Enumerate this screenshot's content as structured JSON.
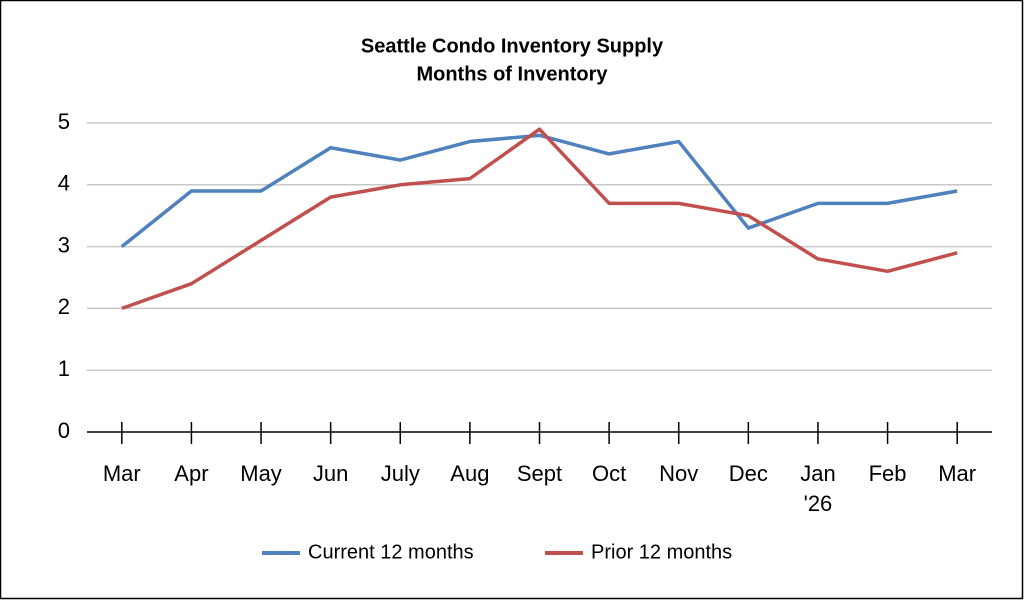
{
  "chart_data": {
    "type": "line",
    "title": "Seattle Condo Inventory Supply",
    "subtitle": "Months of Inventory",
    "categories": [
      "Mar",
      "Apr",
      "May",
      "Jun",
      "July",
      "Aug",
      "Sept",
      "Oct",
      "Nov",
      "Dec",
      "Jan '26",
      "Feb",
      "Mar"
    ],
    "series": [
      {
        "name": "Current 12 months",
        "color": "#4f81bd",
        "values": [
          3.0,
          3.9,
          3.9,
          4.6,
          4.4,
          4.7,
          4.8,
          4.5,
          4.7,
          3.3,
          3.7,
          3.7,
          3.9
        ]
      },
      {
        "name": "Prior 12 months",
        "color": "#c0504d",
        "values": [
          2.0,
          2.4,
          3.1,
          3.8,
          4.0,
          4.1,
          4.9,
          3.7,
          3.7,
          3.5,
          2.8,
          2.6,
          2.9
        ]
      }
    ],
    "ylim": [
      0,
      5
    ],
    "yticks": [
      0,
      1,
      2,
      3,
      4,
      5
    ],
    "grid": true,
    "legend": "bottom"
  }
}
